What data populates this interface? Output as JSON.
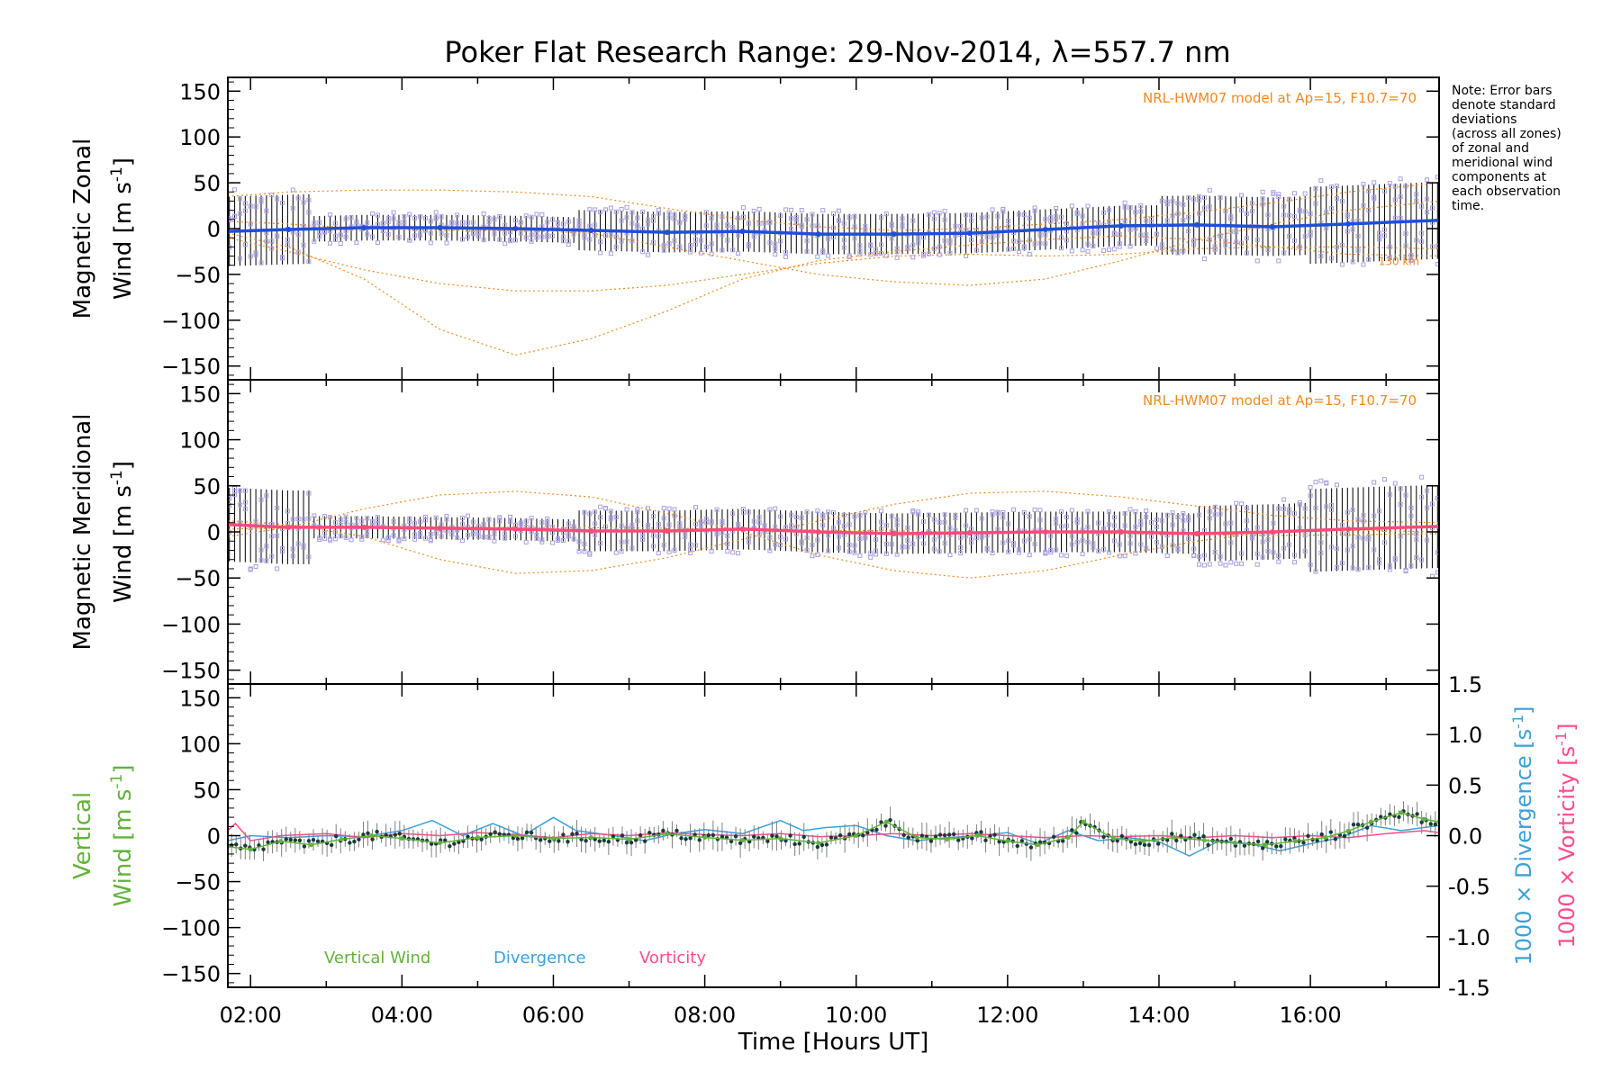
{
  "title": "Poker Flat Research Range: 29-Nov-2014, λ=557.7 nm",
  "note_lines": [
    "Note: Error bars",
    "denote standard",
    "deviations",
    "(across all zones)",
    "of zonal and",
    "meridional wind",
    "components at",
    "each observation",
    "time."
  ],
  "model_label": "NRL-HWM07 model at Ap=15, F10.7=70",
  "model_height_label": "130 km",
  "colors": {
    "axis": "#000000",
    "model": "#f08a1e",
    "zones": "#a8a0e0",
    "zonal_line": "#1f4fd8",
    "zonal_line_late": "#4aa8e0",
    "meridional_line": "#ff4a7a",
    "vertical": "#62b33a",
    "divergence": "#3aa0d8",
    "vorticity": "#ff4a8a",
    "errorbar": "#000000",
    "vertical_errorbar": "#808080"
  },
  "chart_data": [
    {
      "id": "zonal",
      "type": "line",
      "ylabel_line1": "Magnetic Zonal",
      "ylabel_line2_text": "Wind [m s",
      "ylabel_sup": "-1",
      "ylabel_close": "]",
      "ylim": [
        -165,
        165
      ],
      "yticks": [
        -150,
        -100,
        -50,
        0,
        50,
        100,
        150
      ],
      "xlim": [
        1.7,
        17.7
      ],
      "series": [
        {
          "values": [
            [
              1.7,
              -3
            ],
            [
              2.5,
              -1
            ],
            [
              3.5,
              1
            ],
            [
              4.5,
              1
            ],
            [
              5.5,
              0
            ],
            [
              6.5,
              -2
            ],
            [
              7.5,
              -4
            ],
            [
              8.5,
              -3
            ],
            [
              9.5,
              -6
            ],
            [
              10.5,
              -6
            ],
            [
              11.5,
              -5
            ],
            [
              12.5,
              -1
            ],
            [
              13.5,
              3
            ],
            [
              14.5,
              4
            ],
            [
              15.5,
              2
            ],
            [
              16.5,
              5
            ],
            [
              17.7,
              9
            ]
          ]
        }
      ],
      "model_curves": [
        [
          [
            1.7,
            -5
          ],
          [
            2.5,
            -20
          ],
          [
            3.5,
            -55
          ],
          [
            4.5,
            -110
          ],
          [
            5.5,
            -138
          ],
          [
            6.5,
            -120
          ],
          [
            7.5,
            -90
          ],
          [
            8.5,
            -55
          ],
          [
            9.5,
            -35
          ],
          [
            10.5,
            -25
          ],
          [
            11.5,
            -18
          ],
          [
            12.5,
            -12
          ],
          [
            13.5,
            -8
          ],
          [
            14.5,
            -12
          ],
          [
            15.5,
            -20
          ],
          [
            16.5,
            -28
          ],
          [
            17.7,
            -30
          ]
        ],
        [
          [
            1.7,
            35
          ],
          [
            2.5,
            40
          ],
          [
            3.5,
            42
          ],
          [
            4.5,
            42
          ],
          [
            5.5,
            40
          ],
          [
            6.5,
            35
          ],
          [
            7.5,
            22
          ],
          [
            8.5,
            10
          ],
          [
            9.5,
            2
          ],
          [
            10.5,
            -2
          ],
          [
            11.5,
            0
          ],
          [
            12.5,
            5
          ],
          [
            13.5,
            10
          ],
          [
            14.5,
            18
          ],
          [
            15.5,
            28
          ],
          [
            16.5,
            40
          ],
          [
            17.7,
            50
          ]
        ],
        [
          [
            1.7,
            -10
          ],
          [
            2.5,
            -25
          ],
          [
            3.5,
            -45
          ],
          [
            4.5,
            -60
          ],
          [
            5.5,
            -68
          ],
          [
            6.5,
            -68
          ],
          [
            7.5,
            -62
          ],
          [
            8.5,
            -50
          ],
          [
            9.5,
            -38
          ],
          [
            10.5,
            -30
          ],
          [
            11.5,
            -28
          ],
          [
            12.5,
            -30
          ],
          [
            13.5,
            -28
          ],
          [
            14.5,
            -22
          ],
          [
            15.5,
            -20
          ],
          [
            16.5,
            -20
          ],
          [
            17.7,
            -22
          ]
        ],
        [
          [
            1.7,
            8
          ],
          [
            2.5,
            5
          ],
          [
            3.5,
            0
          ],
          [
            4.5,
            -2
          ],
          [
            5.5,
            -2
          ],
          [
            6.5,
            -5
          ],
          [
            7.5,
            -20
          ],
          [
            8.5,
            -35
          ],
          [
            9.5,
            -50
          ],
          [
            10.5,
            -58
          ],
          [
            11.5,
            -62
          ],
          [
            12.5,
            -55
          ],
          [
            13.5,
            -35
          ],
          [
            14.5,
            -12
          ],
          [
            15.5,
            5
          ],
          [
            16.5,
            20
          ],
          [
            17.7,
            30
          ]
        ]
      ]
    },
    {
      "id": "meridional",
      "type": "line",
      "ylabel_line1": "Magnetic Meridional",
      "ylabel_line2_text": "Wind [m s",
      "ylabel_sup": "-1",
      "ylabel_close": "]",
      "ylim": [
        -165,
        165
      ],
      "yticks": [
        -150,
        -100,
        -50,
        0,
        50,
        100,
        150
      ],
      "xlim": [
        1.7,
        17.7
      ],
      "series": [
        {
          "values": [
            [
              1.7,
              8
            ],
            [
              2.5,
              5
            ],
            [
              3.5,
              5
            ],
            [
              4.5,
              4
            ],
            [
              5.5,
              3
            ],
            [
              6.5,
              1
            ],
            [
              7.5,
              1
            ],
            [
              8.5,
              3
            ],
            [
              9.5,
              0
            ],
            [
              10.5,
              -2
            ],
            [
              11.5,
              -1
            ],
            [
              12.5,
              0
            ],
            [
              13.5,
              0
            ],
            [
              14.5,
              -2
            ],
            [
              15.5,
              0
            ],
            [
              16.5,
              3
            ],
            [
              17.7,
              6
            ]
          ]
        }
      ],
      "model_curves": [
        [
          [
            1.7,
            12
          ],
          [
            2.5,
            8
          ],
          [
            3.5,
            -5
          ],
          [
            4.5,
            -30
          ],
          [
            5.5,
            -45
          ],
          [
            6.5,
            -42
          ],
          [
            7.5,
            -28
          ],
          [
            8.5,
            -8
          ],
          [
            9.5,
            12
          ],
          [
            10.5,
            30
          ],
          [
            11.5,
            42
          ],
          [
            12.5,
            44
          ],
          [
            13.5,
            38
          ],
          [
            14.5,
            28
          ],
          [
            15.5,
            18
          ],
          [
            16.5,
            12
          ],
          [
            17.7,
            10
          ]
        ],
        [
          [
            1.7,
            -5
          ],
          [
            2.5,
            5
          ],
          [
            3.5,
            25
          ],
          [
            4.5,
            40
          ],
          [
            5.5,
            44
          ],
          [
            6.5,
            38
          ],
          [
            7.5,
            20
          ],
          [
            8.5,
            0
          ],
          [
            9.5,
            -25
          ],
          [
            10.5,
            -42
          ],
          [
            11.5,
            -50
          ],
          [
            12.5,
            -42
          ],
          [
            13.5,
            -25
          ],
          [
            14.5,
            -10
          ],
          [
            15.5,
            0
          ],
          [
            16.5,
            2
          ],
          [
            17.7,
            0
          ]
        ],
        [
          [
            1.7,
            3
          ],
          [
            3.5,
            6
          ],
          [
            5.5,
            5
          ],
          [
            7.5,
            4
          ],
          [
            9.5,
            2
          ],
          [
            11.5,
            0
          ],
          [
            13.5,
            -2
          ],
          [
            15.5,
            -4
          ],
          [
            17.7,
            -2
          ]
        ]
      ]
    },
    {
      "id": "vertical",
      "type": "line",
      "ylabel_line1": "Vertical",
      "ylabel_line2_text": "Wind [m s",
      "ylabel_sup": "-1",
      "ylabel_close": "]",
      "ylim": [
        -165,
        165
      ],
      "yticks": [
        -150,
        -100,
        -50,
        0,
        50,
        100,
        150
      ],
      "y2lim": [
        -1.5,
        1.5
      ],
      "y2ticks": [
        -1.5,
        -1.0,
        -0.5,
        0.0,
        0.5,
        1.0,
        1.5
      ],
      "y2label1": "1000 × Divergence [s",
      "y2label2": "1000 × Vorticity [s",
      "y2sup": "-1",
      "y2close": "]",
      "xlim": [
        1.7,
        17.7
      ],
      "xticks": [
        2,
        4,
        6,
        8,
        10,
        12,
        14,
        16
      ],
      "xticklabels": [
        "02:00",
        "04:00",
        "06:00",
        "08:00",
        "10:00",
        "12:00",
        "14:00",
        "16:00"
      ],
      "xlabel": "Time [Hours UT]",
      "legend": [
        "Vertical Wind",
        "Divergence",
        "Vorticity"
      ],
      "series": [
        {
          "name": "Vertical Wind",
          "values": [
            [
              1.7,
              -12
            ],
            [
              2.0,
              -15
            ],
            [
              2.4,
              -6
            ],
            [
              2.8,
              -10
            ],
            [
              3.2,
              -4
            ],
            [
              3.6,
              0
            ],
            [
              4.0,
              -3
            ],
            [
              4.5,
              -8
            ],
            [
              5.0,
              -2
            ],
            [
              5.5,
              0
            ],
            [
              6.0,
              -3
            ],
            [
              6.5,
              -2
            ],
            [
              7.0,
              -4
            ],
            [
              7.5,
              2
            ],
            [
              8.0,
              -2
            ],
            [
              8.5,
              -5
            ],
            [
              9.0,
              -3
            ],
            [
              9.5,
              -8
            ],
            [
              10.0,
              0
            ],
            [
              10.4,
              15
            ],
            [
              10.8,
              -2
            ],
            [
              11.2,
              -4
            ],
            [
              11.6,
              0
            ],
            [
              12.0,
              -6
            ],
            [
              12.4,
              -10
            ],
            [
              12.8,
              -2
            ],
            [
              13.0,
              15
            ],
            [
              13.4,
              -3
            ],
            [
              13.8,
              -6
            ],
            [
              14.2,
              -2
            ],
            [
              14.6,
              -5
            ],
            [
              15.0,
              -8
            ],
            [
              15.4,
              -10
            ],
            [
              15.8,
              -6
            ],
            [
              16.2,
              -2
            ],
            [
              16.5,
              5
            ],
            [
              16.8,
              15
            ],
            [
              17.2,
              25
            ],
            [
              17.5,
              18
            ],
            [
              17.7,
              15
            ]
          ]
        },
        {
          "name": "Divergence",
          "values": [
            [
              1.7,
              -0.05
            ],
            [
              2.0,
              0.0
            ],
            [
              2.5,
              -0.02
            ],
            [
              3.0,
              0.0
            ],
            [
              3.5,
              -0.01
            ],
            [
              4.0,
              0.05
            ],
            [
              4.4,
              0.15
            ],
            [
              4.8,
              0.0
            ],
            [
              5.2,
              0.12
            ],
            [
              5.6,
              0.0
            ],
            [
              6.0,
              0.18
            ],
            [
              6.3,
              0.05
            ],
            [
              6.8,
              0.0
            ],
            [
              7.2,
              -0.05
            ],
            [
              7.6,
              0.02
            ],
            [
              8.0,
              0.06
            ],
            [
              8.5,
              0.02
            ],
            [
              9.0,
              0.15
            ],
            [
              9.3,
              0.05
            ],
            [
              9.6,
              0.08
            ],
            [
              10.0,
              0.1
            ],
            [
              10.4,
              0.0
            ],
            [
              10.8,
              -0.05
            ],
            [
              11.2,
              -0.02
            ],
            [
              11.6,
              0.0
            ],
            [
              12.0,
              0.03
            ],
            [
              12.4,
              -0.08
            ],
            [
              12.8,
              0.05
            ],
            [
              13.2,
              -0.05
            ],
            [
              13.6,
              -0.02
            ],
            [
              14.0,
              -0.06
            ],
            [
              14.4,
              -0.2
            ],
            [
              14.8,
              -0.05
            ],
            [
              15.2,
              -0.08
            ],
            [
              15.6,
              -0.15
            ],
            [
              16.0,
              -0.08
            ],
            [
              16.4,
              -0.02
            ],
            [
              16.8,
              0.1
            ],
            [
              17.2,
              0.05
            ],
            [
              17.7,
              0.1
            ]
          ]
        },
        {
          "name": "Vorticity",
          "values": [
            [
              1.7,
              0.05
            ],
            [
              1.8,
              0.12
            ],
            [
              2.0,
              -0.05
            ],
            [
              2.4,
              0.0
            ],
            [
              3.0,
              0.02
            ],
            [
              3.5,
              -0.02
            ],
            [
              4.0,
              0.02
            ],
            [
              4.5,
              0.0
            ],
            [
              5.0,
              0.03
            ],
            [
              5.5,
              0.01
            ],
            [
              6.0,
              -0.02
            ],
            [
              6.5,
              0.02
            ],
            [
              7.0,
              0.0
            ],
            [
              7.5,
              0.03
            ],
            [
              8.0,
              0.01
            ],
            [
              8.5,
              0.0
            ],
            [
              9.0,
              0.02
            ],
            [
              9.5,
              -0.01
            ],
            [
              10.0,
              0.0
            ],
            [
              10.5,
              0.02
            ],
            [
              11.0,
              0.0
            ],
            [
              11.5,
              0.02
            ],
            [
              12.0,
              0.0
            ],
            [
              12.5,
              -0.02
            ],
            [
              13.0,
              0.0
            ],
            [
              13.5,
              -0.01
            ],
            [
              14.0,
              0.0
            ],
            [
              14.5,
              -0.02
            ],
            [
              15.0,
              0.0
            ],
            [
              15.5,
              -0.02
            ],
            [
              16.0,
              0.0
            ],
            [
              16.5,
              -0.02
            ],
            [
              17.0,
              0.02
            ],
            [
              17.5,
              0.05
            ],
            [
              17.7,
              0.03
            ]
          ]
        }
      ]
    }
  ]
}
